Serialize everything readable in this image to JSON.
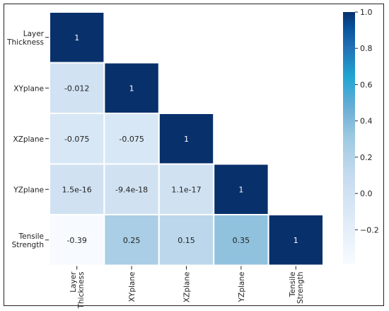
{
  "chart_data": {
    "type": "heatmap",
    "title": "",
    "xlabel": "",
    "ylabel": "",
    "labels": [
      [
        "Layer",
        "Thickness"
      ],
      [
        "XYplane"
      ],
      [
        "XZplane"
      ],
      [
        "YZplane"
      ],
      [
        "Tensile",
        "Strength"
      ]
    ],
    "cells": [
      {
        "row": 0,
        "col": 0,
        "value": 1,
        "text": "1"
      },
      {
        "row": 1,
        "col": 0,
        "value": -0.012,
        "text": "-0.012"
      },
      {
        "row": 1,
        "col": 1,
        "value": 1,
        "text": "1"
      },
      {
        "row": 2,
        "col": 0,
        "value": -0.075,
        "text": "-0.075"
      },
      {
        "row": 2,
        "col": 1,
        "value": -0.075,
        "text": "-0.075"
      },
      {
        "row": 2,
        "col": 2,
        "value": 1,
        "text": "1"
      },
      {
        "row": 3,
        "col": 0,
        "value": 1.5e-16,
        "text": "1.5e-16"
      },
      {
        "row": 3,
        "col": 1,
        "value": -9.4e-18,
        "text": "-9.4e-18"
      },
      {
        "row": 3,
        "col": 2,
        "value": 1.1e-17,
        "text": "1.1e-17"
      },
      {
        "row": 3,
        "col": 3,
        "value": 1,
        "text": "1"
      },
      {
        "row": 4,
        "col": 0,
        "value": -0.39,
        "text": "-0.39"
      },
      {
        "row": 4,
        "col": 1,
        "value": 0.25,
        "text": "0.25"
      },
      {
        "row": 4,
        "col": 2,
        "value": 0.15,
        "text": "0.15"
      },
      {
        "row": 4,
        "col": 3,
        "value": 0.35,
        "text": "0.35"
      },
      {
        "row": 4,
        "col": 4,
        "value": 1,
        "text": "1"
      }
    ],
    "colorbar": {
      "range": [
        -0.39,
        1.0
      ],
      "ticks": [
        1.0,
        0.8,
        0.6,
        0.4,
        0.2,
        0.0,
        -0.2
      ],
      "tick_labels": [
        "1.0",
        "0.8",
        "0.6",
        "0.4",
        "0.2",
        "0.0",
        "−0.2"
      ],
      "colormap": "Blues",
      "low_color": "#f7fbff",
      "high_color": "#08306b"
    },
    "grid": false,
    "legend": "colorbar-right"
  }
}
